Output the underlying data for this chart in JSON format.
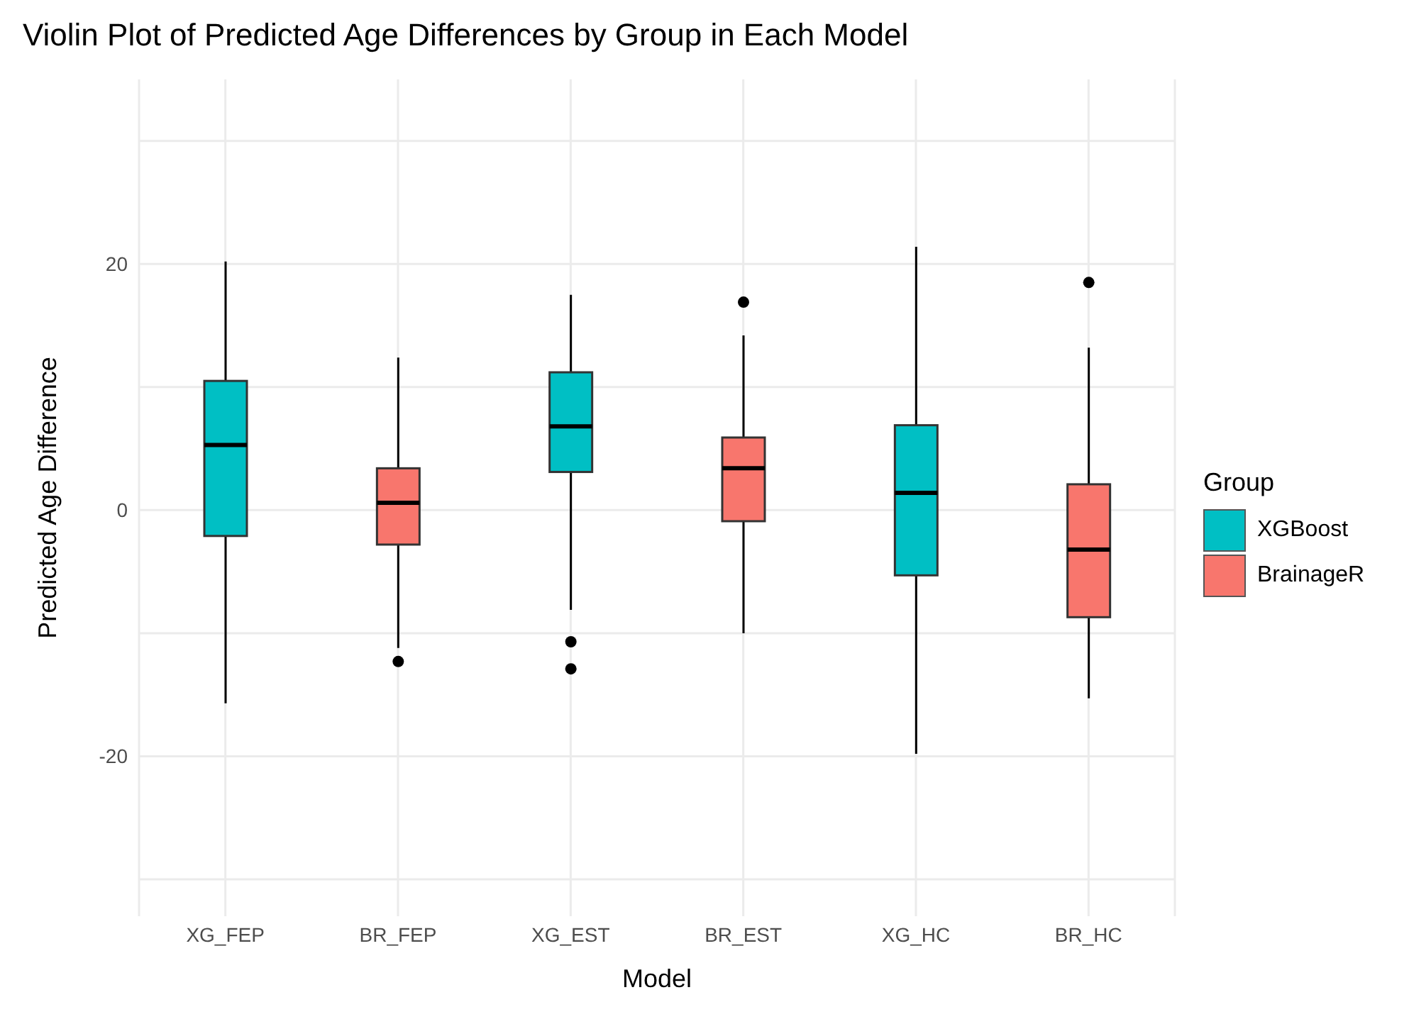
{
  "chart_data": {
    "type": "box",
    "title": "Violin Plot of Predicted Age Differences by Group in Each Model",
    "xlabel": "Model",
    "ylabel": "Predicted Age Difference",
    "legend_title": "Group",
    "categories": [
      "XG_FEP",
      "BR_FEP",
      "XG_EST",
      "BR_EST",
      "XG_HC",
      "BR_HC"
    ],
    "series": [
      {
        "name": "XGBoost",
        "color": "#00bfc4",
        "boxes": [
          {
            "low": -15.7,
            "q1": -2.1,
            "median": 5.3,
            "q3": 10.5,
            "high": 20.2
          },
          null,
          {
            "low": -8.1,
            "q1": 3.1,
            "median": 6.8,
            "q3": 11.2,
            "high": 17.5,
            "outliers": [
              -10.7,
              -12.9
            ]
          },
          null,
          {
            "low": -19.8,
            "q1": -5.3,
            "median": 1.4,
            "q3": 6.9,
            "high": 21.4
          },
          null
        ]
      },
      {
        "name": "BrainageR",
        "color": "#f8766d",
        "boxes": [
          null,
          {
            "low": -11.2,
            "q1": -2.8,
            "median": 0.6,
            "q3": 3.4,
            "high": 12.4,
            "outliers": [
              -12.3
            ]
          },
          null,
          {
            "low": -10,
            "q1": -0.9,
            "median": 3.4,
            "q3": 5.9,
            "high": 14.2,
            "outliers": [
              16.9
            ]
          },
          null,
          {
            "low": -15.3,
            "q1": -8.7,
            "median": -3.2,
            "q3": 2.1,
            "high": 13.2,
            "outliers": [
              18.5
            ]
          }
        ]
      }
    ],
    "ylim": [
      -33,
      35
    ],
    "yticks": [
      {
        "value": -30,
        "label": null
      },
      -20,
      {
        "value": -10,
        "label": null
      },
      0,
      {
        "value": 10,
        "label": null
      },
      20,
      {
        "value": 30,
        "label": null
      }
    ],
    "grid": true,
    "legend": "right"
  }
}
